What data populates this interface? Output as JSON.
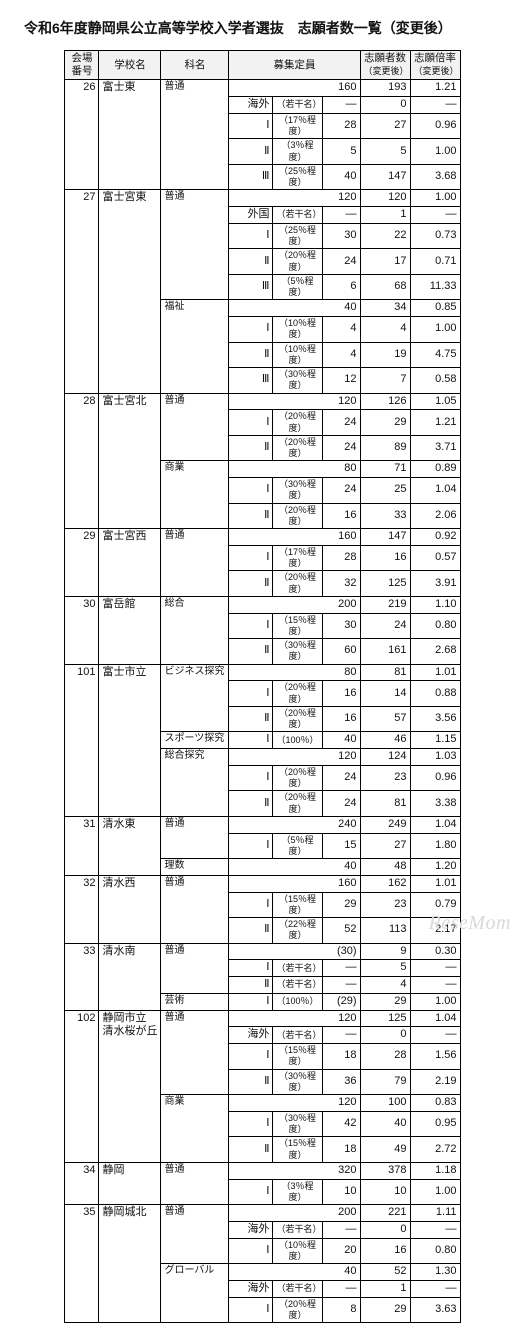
{
  "title": "令和6年度静岡県公立高等学校入学者選抜　志願者数一覧（変更後）",
  "watermark": "ReseMom",
  "columns": {
    "venueNo": "会場\n番号",
    "school": "学校名",
    "dept": "科名",
    "capacity": "募集定員",
    "applicants": "志願者数",
    "applicantsSub": "（変更後）",
    "ratio": "志願倍率",
    "ratioSub": "（変更後）"
  },
  "pctLabels": {
    "kaigai": "海外",
    "gaikoku": "外国",
    "p3": "（3％程度）",
    "p5": "（5％程度）",
    "p10": "（10％程度）",
    "p15": "（15％程度）",
    "p17": "（17％程度）",
    "p20": "（20％程度）",
    "p22": "（22％程度）",
    "p25": "（25％程度）",
    "p30": "（30％程度）",
    "p100": "（100％）",
    "jakkan": "（若干名）"
  },
  "rows": [
    {
      "g": 1,
      "no": "26",
      "school": "富士東",
      "dept": "普通",
      "cap": "160",
      "app": "193",
      "ratio": "1.21"
    },
    {
      "sub": "海外",
      "subnote": "jakkan",
      "cap": "―",
      "app": "0",
      "ratio": "―"
    },
    {
      "sub": "Ⅰ",
      "subnote": "p17",
      "cap": "28",
      "app": "27",
      "ratio": "0.96"
    },
    {
      "sub": "Ⅱ",
      "subnote": "p3",
      "cap": "5",
      "app": "5",
      "ratio": "1.00"
    },
    {
      "sub": "Ⅲ",
      "subnote": "p25",
      "cap": "40",
      "app": "147",
      "ratio": "3.68",
      "deptEnd": 1
    },
    {
      "g": 1,
      "no": "27",
      "school": "富士宮東",
      "dept": "普通",
      "cap": "120",
      "app": "120",
      "ratio": "1.00"
    },
    {
      "sub": "外国",
      "subnote": "jakkan",
      "cap": "―",
      "app": "1",
      "ratio": "―"
    },
    {
      "sub": "Ⅰ",
      "subnote": "p25",
      "cap": "30",
      "app": "22",
      "ratio": "0.73"
    },
    {
      "sub": "Ⅱ",
      "subnote": "p20",
      "cap": "24",
      "app": "17",
      "ratio": "0.71"
    },
    {
      "sub": "Ⅲ",
      "subnote": "p5",
      "cap": "6",
      "app": "68",
      "ratio": "11.33",
      "deptEnd": 1
    },
    {
      "dept": "福祉",
      "cap": "40",
      "app": "34",
      "ratio": "0.85"
    },
    {
      "sub": "Ⅰ",
      "subnote": "p10",
      "cap": "4",
      "app": "4",
      "ratio": "1.00"
    },
    {
      "sub": "Ⅱ",
      "subnote": "p10",
      "cap": "4",
      "app": "19",
      "ratio": "4.75"
    },
    {
      "sub": "Ⅲ",
      "subnote": "p30",
      "cap": "12",
      "app": "7",
      "ratio": "0.58",
      "deptEnd": 1
    },
    {
      "g": 1,
      "no": "28",
      "school": "富士宮北",
      "dept": "普通",
      "cap": "120",
      "app": "126",
      "ratio": "1.05"
    },
    {
      "sub": "Ⅰ",
      "subnote": "p20",
      "cap": "24",
      "app": "29",
      "ratio": "1.21"
    },
    {
      "sub": "Ⅱ",
      "subnote": "p20",
      "cap": "24",
      "app": "89",
      "ratio": "3.71",
      "deptEnd": 1
    },
    {
      "dept": "商業",
      "cap": "80",
      "app": "71",
      "ratio": "0.89"
    },
    {
      "sub": "Ⅰ",
      "subnote": "p30",
      "cap": "24",
      "app": "25",
      "ratio": "1.04"
    },
    {
      "sub": "Ⅱ",
      "subnote": "p20",
      "cap": "16",
      "app": "33",
      "ratio": "2.06",
      "deptEnd": 1
    },
    {
      "g": 1,
      "no": "29",
      "school": "富士宮西",
      "dept": "普通",
      "cap": "160",
      "app": "147",
      "ratio": "0.92"
    },
    {
      "sub": "Ⅰ",
      "subnote": "p17",
      "cap": "28",
      "app": "16",
      "ratio": "0.57"
    },
    {
      "sub": "Ⅱ",
      "subnote": "p20",
      "cap": "32",
      "app": "125",
      "ratio": "3.91",
      "deptEnd": 1
    },
    {
      "g": 1,
      "no": "30",
      "school": "富岳館",
      "dept": "総合",
      "cap": "200",
      "app": "219",
      "ratio": "1.10"
    },
    {
      "sub": "Ⅰ",
      "subnote": "p15",
      "cap": "30",
      "app": "24",
      "ratio": "0.80"
    },
    {
      "sub": "Ⅱ",
      "subnote": "p30",
      "cap": "60",
      "app": "161",
      "ratio": "2.68",
      "deptEnd": 1
    },
    {
      "g": 1,
      "no": "101",
      "school": "富士市立",
      "dept": "ビジネス探究",
      "cap": "80",
      "app": "81",
      "ratio": "1.01"
    },
    {
      "sub": "Ⅰ",
      "subnote": "p20",
      "cap": "16",
      "app": "14",
      "ratio": "0.88"
    },
    {
      "sub": "Ⅱ",
      "subnote": "p20",
      "cap": "16",
      "app": "57",
      "ratio": "3.56",
      "deptEnd": 1
    },
    {
      "dept": "スポーツ探究",
      "sub": "Ⅰ",
      "subnote": "p100",
      "cap": "40",
      "app": "46",
      "ratio": "1.15",
      "deptEnd": 1
    },
    {
      "dept": "総合探究",
      "cap": "120",
      "app": "124",
      "ratio": "1.03"
    },
    {
      "sub": "Ⅰ",
      "subnote": "p20",
      "cap": "24",
      "app": "23",
      "ratio": "0.96"
    },
    {
      "sub": "Ⅱ",
      "subnote": "p20",
      "cap": "24",
      "app": "81",
      "ratio": "3.38",
      "deptEnd": 1
    },
    {
      "g": 1,
      "no": "31",
      "school": "清水東",
      "dept": "普通",
      "cap": "240",
      "app": "249",
      "ratio": "1.04"
    },
    {
      "sub": "Ⅰ",
      "subnote": "p5",
      "cap": "15",
      "app": "27",
      "ratio": "1.80",
      "deptEnd": 1
    },
    {
      "dept": "理数",
      "cap": "40",
      "app": "48",
      "ratio": "1.20",
      "deptEnd": 1
    },
    {
      "g": 1,
      "no": "32",
      "school": "清水西",
      "dept": "普通",
      "cap": "160",
      "app": "162",
      "ratio": "1.01"
    },
    {
      "sub": "Ⅰ",
      "subnote": "p15",
      "cap": "29",
      "app": "23",
      "ratio": "0.79"
    },
    {
      "sub": "Ⅱ",
      "subnote": "p22",
      "cap": "52",
      "app": "113",
      "ratio": "2.17",
      "deptEnd": 1
    },
    {
      "g": 1,
      "no": "33",
      "school": "清水南",
      "dept": "普通",
      "cap": "(30)",
      "app": "9",
      "ratio": "0.30"
    },
    {
      "sub": "Ⅰ",
      "subnote": "jakkan",
      "cap": "―",
      "app": "5",
      "ratio": "―"
    },
    {
      "sub": "Ⅱ",
      "subnote": "jakkan",
      "cap": "―",
      "app": "4",
      "ratio": "―",
      "deptEnd": 1
    },
    {
      "dept": "芸術",
      "sub": "Ⅰ",
      "subnote": "p100",
      "cap": "(29)",
      "app": "29",
      "ratio": "1.00",
      "deptEnd": 1
    },
    {
      "g": 1,
      "no": "102",
      "school": "静岡市立\n清水桜が丘",
      "dept": "普通",
      "cap": "120",
      "app": "125",
      "ratio": "1.04"
    },
    {
      "sub": "海外",
      "subnote": "jakkan",
      "cap": "―",
      "app": "0",
      "ratio": "―"
    },
    {
      "sub": "Ⅰ",
      "subnote": "p15",
      "cap": "18",
      "app": "28",
      "ratio": "1.56"
    },
    {
      "sub": "Ⅱ",
      "subnote": "p30",
      "cap": "36",
      "app": "79",
      "ratio": "2.19",
      "deptEnd": 1
    },
    {
      "dept": "商業",
      "cap": "120",
      "app": "100",
      "ratio": "0.83"
    },
    {
      "sub": "Ⅰ",
      "subnote": "p30",
      "cap": "42",
      "app": "40",
      "ratio": "0.95"
    },
    {
      "sub": "Ⅱ",
      "subnote": "p15",
      "cap": "18",
      "app": "49",
      "ratio": "2.72",
      "deptEnd": 1
    },
    {
      "g": 1,
      "no": "34",
      "school": "静岡",
      "dept": "普通",
      "cap": "320",
      "app": "378",
      "ratio": "1.18"
    },
    {
      "sub": "Ⅰ",
      "subnote": "p3",
      "cap": "10",
      "app": "10",
      "ratio": "1.00",
      "deptEnd": 1
    },
    {
      "g": 1,
      "no": "35",
      "school": "静岡城北",
      "dept": "普通",
      "cap": "200",
      "app": "221",
      "ratio": "1.11"
    },
    {
      "sub": "海外",
      "subnote": "jakkan",
      "cap": "―",
      "app": "0",
      "ratio": "―"
    },
    {
      "sub": "Ⅰ",
      "subnote": "p10",
      "cap": "20",
      "app": "16",
      "ratio": "0.80",
      "deptEnd": 1
    },
    {
      "dept": "グローバル",
      "cap": "40",
      "app": "52",
      "ratio": "1.30"
    },
    {
      "sub": "海外",
      "subnote": "jakkan",
      "cap": "―",
      "app": "1",
      "ratio": "―"
    },
    {
      "sub": "Ⅰ",
      "subnote": "p20",
      "cap": "8",
      "app": "29",
      "ratio": "3.63",
      "deptEnd": 1
    }
  ]
}
